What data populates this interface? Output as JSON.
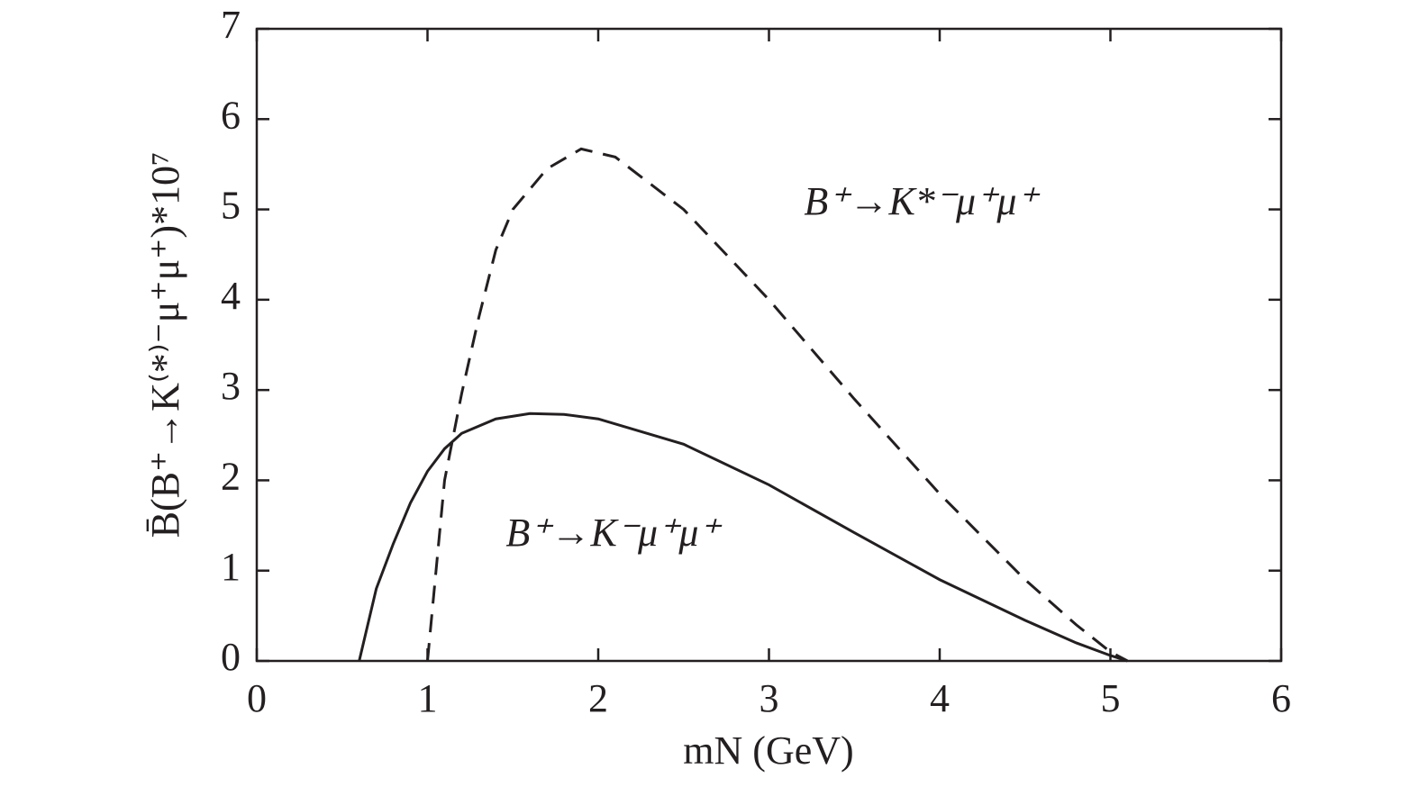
{
  "chart_data": {
    "type": "line",
    "xlabel": "mN (GeV)",
    "ylabel": "B̄(B⁺→K⁽*⁾⁻μ⁺μ⁺)*10⁷",
    "annotations": [
      "B⁺→K*⁻μ⁺μ⁺",
      "B⁺→K⁻μ⁺μ⁺"
    ],
    "xlim": [
      0,
      6
    ],
    "xticks": [
      0,
      1,
      2,
      3,
      4,
      5,
      6
    ],
    "ylim": [
      0,
      7
    ],
    "yticks": [
      0,
      1,
      2,
      3,
      4,
      5,
      6,
      7
    ],
    "series": [
      {
        "color": "#231f20",
        "dash": false,
        "x": [
          0.6,
          0.7,
          0.8,
          0.9,
          1.0,
          1.1,
          1.2,
          1.4,
          1.6,
          1.8,
          2.0,
          2.5,
          3.0,
          3.5,
          4.0,
          4.5,
          4.8,
          5.0,
          5.1
        ],
        "values": [
          0,
          0.8,
          1.3,
          1.75,
          2.1,
          2.35,
          2.52,
          2.68,
          2.74,
          2.73,
          2.68,
          2.4,
          1.95,
          1.42,
          0.9,
          0.45,
          0.2,
          0.06,
          0
        ]
      },
      {
        "color": "#231f20",
        "dash": true,
        "x": [
          1.0,
          1.1,
          1.2,
          1.3,
          1.4,
          1.5,
          1.7,
          1.9,
          2.1,
          2.5,
          3.0,
          3.5,
          4.0,
          4.5,
          4.8,
          5.0,
          5.1
        ],
        "values": [
          0,
          2.0,
          2.96,
          3.8,
          4.55,
          5.0,
          5.45,
          5.67,
          5.58,
          5.0,
          4.0,
          2.9,
          1.85,
          0.9,
          0.4,
          0.1,
          0
        ]
      }
    ]
  }
}
